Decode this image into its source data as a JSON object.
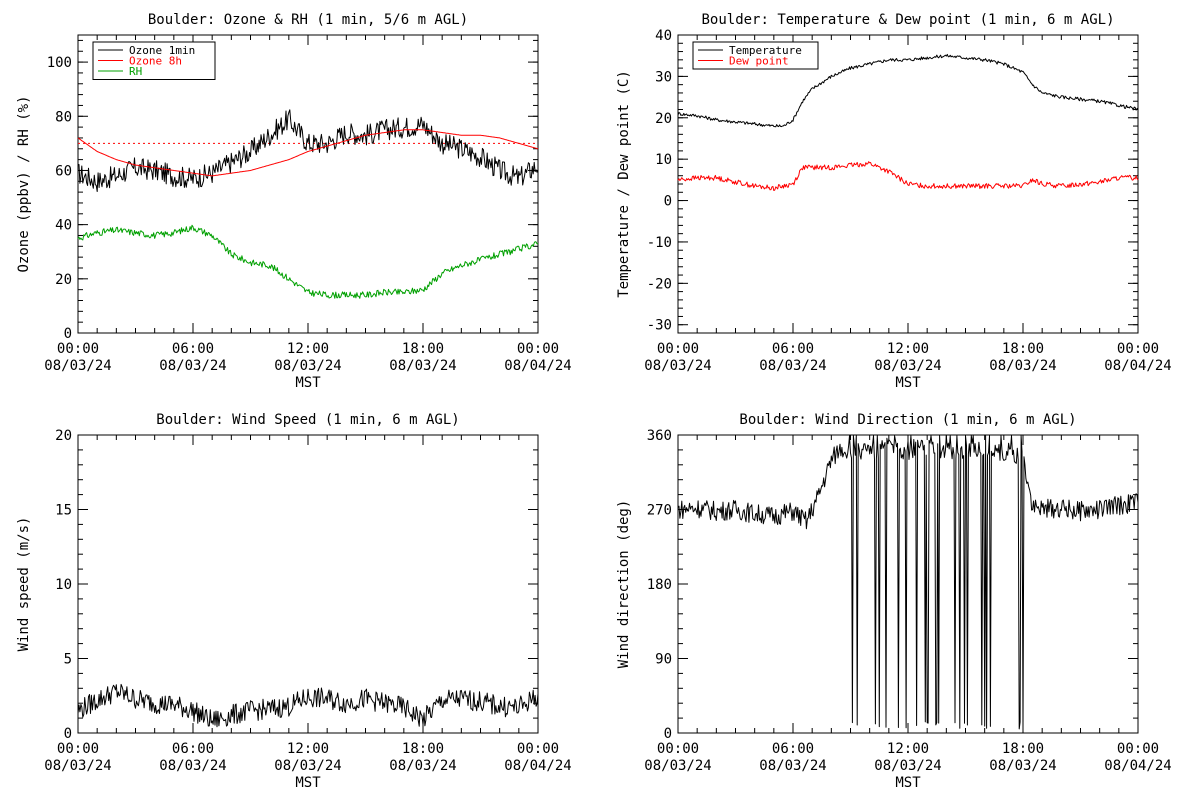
{
  "x_ticks": [
    {
      "time": "00:00",
      "date": "08/03/24"
    },
    {
      "time": "06:00",
      "date": "08/03/24"
    },
    {
      "time": "12:00",
      "date": "08/03/24"
    },
    {
      "time": "18:00",
      "date": "08/03/24"
    },
    {
      "time": "00:00",
      "date": "08/04/24"
    }
  ],
  "colors": {
    "black": "#000000",
    "red": "#ff0000",
    "green": "#00a000"
  },
  "chart_data": [
    {
      "type": "line",
      "title": "Boulder: Ozone & RH (1 min, 5/6 m AGL)",
      "xlabel": "MST",
      "ylabel": "Ozone (ppbv) / RH (%)",
      "xlim": [
        0,
        24
      ],
      "ylim": [
        0,
        110
      ],
      "yticks": [
        0,
        20,
        40,
        60,
        80,
        100
      ],
      "legend_position": "top-left",
      "reference_line": {
        "y": 70,
        "color": "#ff0000",
        "style": "dotted"
      },
      "series": [
        {
          "name": "Ozone 1min",
          "color": "#000000",
          "x": [
            0,
            1,
            2,
            3,
            4,
            5,
            6,
            7,
            8,
            9,
            10,
            11,
            12,
            13,
            14,
            15,
            16,
            17,
            18,
            19,
            20,
            21,
            22,
            23,
            24
          ],
          "y": [
            59,
            56,
            58,
            61,
            60,
            58,
            57,
            59,
            63,
            67,
            73,
            79,
            70,
            70,
            74,
            73,
            75,
            76,
            77,
            70,
            68,
            65,
            60,
            57,
            62
          ]
        },
        {
          "name": "Ozone 8h",
          "color": "#ff0000",
          "x": [
            0,
            1,
            2,
            3,
            4,
            5,
            6,
            7,
            8,
            9,
            10,
            11,
            12,
            13,
            14,
            15,
            16,
            17,
            18,
            19,
            20,
            21,
            22,
            23,
            24
          ],
          "y": [
            72,
            67,
            64,
            62,
            61,
            60,
            59,
            58,
            59,
            60,
            62,
            64,
            67,
            69,
            71,
            73,
            74,
            75,
            75,
            74,
            73,
            73,
            72,
            70,
            68
          ]
        },
        {
          "name": "RH",
          "color": "#00a000",
          "x": [
            0,
            1,
            2,
            3,
            4,
            5,
            6,
            7,
            8,
            9,
            10,
            11,
            12,
            13,
            14,
            15,
            16,
            17,
            18,
            19,
            20,
            21,
            22,
            23,
            24
          ],
          "y": [
            35,
            37,
            38,
            37,
            36,
            37,
            39,
            36,
            29,
            26,
            25,
            20,
            15,
            14,
            14,
            14,
            15,
            15,
            16,
            22,
            25,
            27,
            29,
            31,
            33
          ]
        }
      ]
    },
    {
      "type": "line",
      "title": "Boulder: Temperature & Dew point (1 min, 6 m AGL)",
      "xlabel": "MST",
      "ylabel": "Temperature / Dew point (C)",
      "xlim": [
        0,
        24
      ],
      "ylim": [
        -32,
        40
      ],
      "yticks": [
        -30,
        -20,
        -10,
        0,
        10,
        20,
        30,
        40
      ],
      "legend_position": "top-left",
      "series": [
        {
          "name": "Temperature",
          "color": "#000000",
          "x": [
            0,
            1,
            2,
            3,
            4,
            5,
            5.5,
            6,
            6.5,
            7,
            8,
            9,
            10,
            11,
            12,
            13,
            14,
            15,
            16,
            17,
            18,
            18.5,
            19,
            20,
            21,
            22,
            23,
            24
          ],
          "y": [
            21,
            20.5,
            19.5,
            19,
            18.5,
            18,
            18,
            19.5,
            24,
            27,
            30,
            32,
            33,
            34,
            34,
            34.5,
            35,
            34.5,
            34,
            33,
            31,
            28,
            26,
            25,
            24.5,
            24,
            23,
            22
          ]
        },
        {
          "name": "Dew point",
          "color": "#ff0000",
          "x": [
            0,
            1,
            2,
            3,
            4,
            5,
            6,
            6.5,
            7,
            8,
            9,
            10,
            11,
            12,
            13,
            14,
            15,
            16,
            17,
            18,
            18.5,
            19,
            20,
            21,
            22,
            23,
            24
          ],
          "y": [
            5,
            5.5,
            5.5,
            4.5,
            3.5,
            3,
            4,
            8,
            8,
            8,
            8.5,
            9,
            7,
            4,
            3.5,
            3.5,
            3.5,
            3.5,
            3.5,
            3.5,
            5,
            4,
            3.5,
            4,
            4.5,
            5.5,
            5.5
          ]
        }
      ]
    },
    {
      "type": "line",
      "title": "Boulder: Wind Speed (1 min, 6 m AGL)",
      "xlabel": "MST",
      "ylabel": "Wind speed (m/s)",
      "xlim": [
        0,
        24
      ],
      "ylim": [
        0,
        20
      ],
      "yticks": [
        0,
        5,
        10,
        15,
        20
      ],
      "series": [
        {
          "name": "",
          "color": "#000000",
          "x": [
            0,
            1,
            2,
            3,
            4,
            5,
            6,
            7,
            8,
            9,
            10,
            11,
            12,
            13,
            14,
            15,
            16,
            17,
            18,
            19,
            20,
            21,
            22,
            23,
            24
          ],
          "y": [
            1.5,
            2.2,
            2.8,
            2.3,
            2.0,
            1.9,
            1.5,
            0.8,
            1.2,
            1.5,
            1.6,
            1.8,
            2.4,
            2.3,
            2.0,
            2.3,
            2.0,
            1.7,
            0.9,
            2.2,
            2.3,
            2.1,
            1.8,
            1.7,
            2.5
          ]
        }
      ]
    },
    {
      "type": "line",
      "title": "Boulder: Wind Direction (1 min, 6 m AGL)",
      "xlabel": "MST",
      "ylabel": "Wind direction (deg)",
      "xlim": [
        0,
        24
      ],
      "ylim": [
        0,
        360
      ],
      "yticks": [
        0,
        90,
        180,
        270,
        360
      ],
      "series": [
        {
          "name": "",
          "color": "#000000",
          "x": [
            0,
            1,
            2,
            3,
            4,
            5,
            6,
            6.7,
            7.3,
            8,
            8.5,
            9,
            10,
            11,
            12,
            13,
            14,
            15,
            16,
            17,
            18,
            18.5,
            19,
            20,
            21,
            22,
            23,
            24
          ],
          "y": [
            270,
            272,
            268,
            270,
            265,
            262,
            268,
            255,
            285,
            330,
            345,
            340,
            340,
            345,
            342,
            345,
            340,
            338,
            345,
            340,
            335,
            275,
            270,
            272,
            268,
            270,
            275,
            280
          ]
        }
      ]
    }
  ]
}
